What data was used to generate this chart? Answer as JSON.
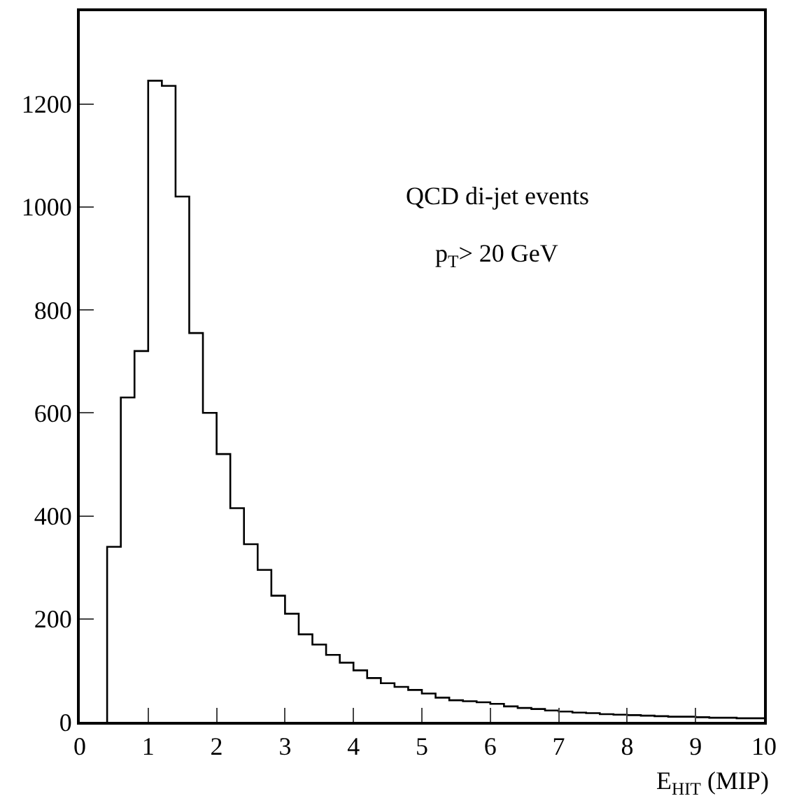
{
  "chart_data": {
    "type": "histogram",
    "xlabel": "E$_{HIT}$ (MIP)",
    "annotations": [
      "QCD di-jet events",
      "p$_{T}$> 20 GeV"
    ],
    "bins": [
      0.4,
      0.6,
      0.8,
      1.0,
      1.2,
      1.4,
      1.6,
      1.8,
      2.0,
      2.2,
      2.4,
      2.6,
      2.8,
      3.0,
      3.2,
      3.4,
      3.6,
      3.8,
      4.0,
      4.2,
      4.4,
      4.6,
      4.8,
      5.0,
      5.2,
      5.4,
      5.6,
      5.8,
      6.0,
      6.2,
      6.4,
      6.6,
      6.8,
      7.0,
      7.2,
      7.4,
      7.6,
      7.8,
      8.0,
      8.2,
      8.4,
      8.6,
      8.8,
      9.0,
      9.2,
      9.4,
      9.6,
      9.8,
      10.0
    ],
    "values": [
      340,
      630,
      720,
      1245,
      1235,
      1020,
      755,
      600,
      520,
      415,
      345,
      295,
      245,
      210,
      170,
      150,
      130,
      115,
      100,
      85,
      75,
      68,
      62,
      55,
      47,
      42,
      40,
      38,
      35,
      30,
      27,
      25,
      22,
      20,
      18,
      17,
      15,
      14,
      13,
      12,
      11,
      10,
      10,
      9,
      8,
      8,
      7,
      7
    ],
    "color": "#000000",
    "xlim": [
      0,
      10
    ],
    "xticks": [
      0,
      1,
      2,
      3,
      4,
      5,
      6,
      7,
      8,
      9,
      10
    ],
    "ylim": [
      0,
      1380
    ],
    "yticks": [
      0,
      200,
      400,
      600,
      800,
      1000,
      1200
    ],
    "grid": false
  }
}
